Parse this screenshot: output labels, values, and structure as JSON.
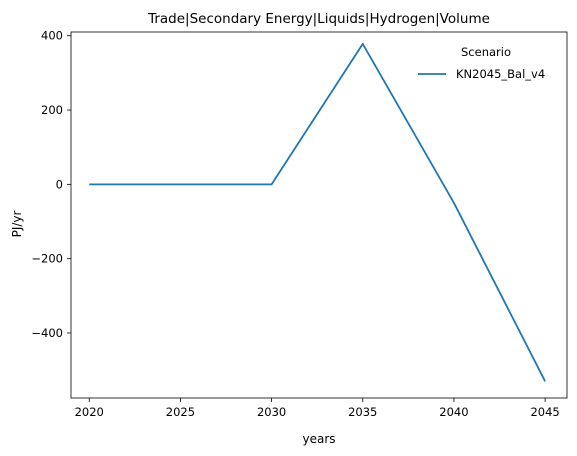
{
  "chart_data": {
    "type": "line",
    "title": "Trade|Secondary Energy|Liquids|Hydrogen|Volume",
    "xlabel": "years",
    "ylabel": "PJ/yr",
    "x": [
      2020,
      2025,
      2030,
      2035,
      2040,
      2045
    ],
    "xticks": [
      "2020",
      "2025",
      "2030",
      "2035",
      "2040",
      "2045"
    ],
    "yticks": [
      "400",
      "200",
      "0",
      "−200",
      "−400"
    ],
    "ytick_values": [
      400,
      200,
      0,
      -200,
      -400
    ],
    "xlim": [
      2019,
      2046.2
    ],
    "ylim": [
      -575,
      410
    ],
    "grid": false,
    "legend": {
      "title": "Scenario",
      "placement": "top-right"
    },
    "series": [
      {
        "name": "KN2045_Bal_v4",
        "color": "#1f77b4",
        "values": [
          0,
          0,
          0,
          378,
          -50,
          -530
        ]
      }
    ]
  }
}
